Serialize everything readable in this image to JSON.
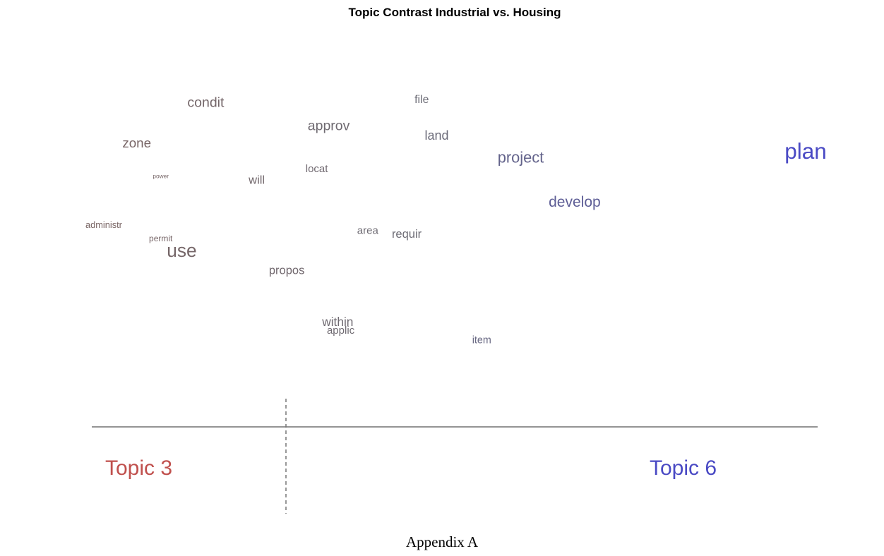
{
  "chart_data": {
    "type": "scatter",
    "title": "Topic Contrast Industrial vs. Housing",
    "topics": [
      {
        "name": "Topic 3",
        "color": "#c0504d"
      },
      {
        "name": "Topic 6",
        "color": "#4a4ac4"
      }
    ],
    "words": [
      {
        "word": "condit",
        "x": -0.72,
        "y": 1.0,
        "size": 1.3
      },
      {
        "word": "file",
        "x": 0.0,
        "y": 1.02,
        "size": 1.05
      },
      {
        "word": "approv",
        "x": -0.31,
        "y": 0.88,
        "size": 1.3
      },
      {
        "word": "land",
        "x": 0.05,
        "y": 0.83,
        "size": 1.2
      },
      {
        "word": "zone",
        "x": -0.95,
        "y": 0.79,
        "size": 1.25
      },
      {
        "word": "project",
        "x": 0.33,
        "y": 0.71,
        "size": 1.45
      },
      {
        "word": "plan",
        "x": 1.28,
        "y": 0.73,
        "size": 2.1
      },
      {
        "word": "locat",
        "x": -0.35,
        "y": 0.66,
        "size": 1.0
      },
      {
        "word": "power",
        "x": -0.87,
        "y": 0.63,
        "size": 0.55
      },
      {
        "word": "will",
        "x": -0.55,
        "y": 0.6,
        "size": 1.1
      },
      {
        "word": "develop",
        "x": 0.51,
        "y": 0.48,
        "size": 1.4
      },
      {
        "word": "administr",
        "x": -1.06,
        "y": 0.37,
        "size": 0.85
      },
      {
        "word": "area",
        "x": -0.18,
        "y": 0.34,
        "size": 1.0
      },
      {
        "word": "requir",
        "x": -0.05,
        "y": 0.32,
        "size": 1.1
      },
      {
        "word": "permit",
        "x": -0.87,
        "y": 0.3,
        "size": 0.8
      },
      {
        "word": "use",
        "x": -0.8,
        "y": 0.22,
        "size": 1.75
      },
      {
        "word": "propos",
        "x": -0.45,
        "y": 0.13,
        "size": 1.1
      },
      {
        "word": "within",
        "x": -0.28,
        "y": -0.14,
        "size": 1.15
      },
      {
        "word": "applic",
        "x": -0.27,
        "y": -0.18,
        "size": 1.0
      },
      {
        "word": "item",
        "x": 0.2,
        "y": -0.23,
        "size": 0.95
      }
    ],
    "xlim": [
      -1.1,
      1.32
    ],
    "ylim": [
      -0.5,
      1.3
    ],
    "grid": false
  },
  "caption": "Appendix A"
}
